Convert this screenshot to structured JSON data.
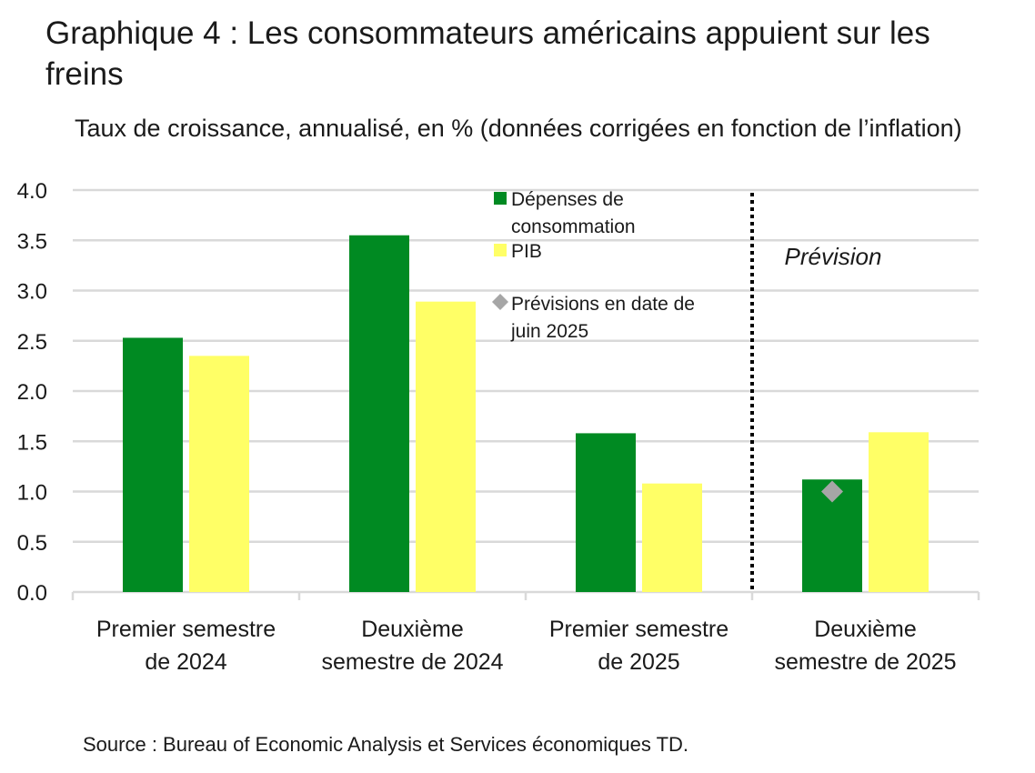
{
  "chart_data": {
    "type": "bar",
    "title": "Graphique 4 : Les consommateurs américains appuient sur les freins",
    "subtitle": "Taux de croissance, annualisé, en % (données corrigées en fonction de l’inflation)",
    "categories": [
      [
        "Premier semestre",
        "de 2024"
      ],
      [
        "Deuxième",
        "semestre de 2024"
      ],
      [
        "Premier semestre",
        "de 2025"
      ],
      [
        "Deuxième",
        "semestre de 2025"
      ]
    ],
    "series": [
      {
        "name": "Dépenses de consommation",
        "legend_lines": [
          "Dépenses de",
          "consommation"
        ],
        "color": "#008a22",
        "values": [
          2.53,
          3.55,
          1.58,
          1.12
        ]
      },
      {
        "name": "PIB",
        "legend_lines": [
          "PIB"
        ],
        "color": "#ffff66",
        "values": [
          2.35,
          2.89,
          1.08,
          1.59
        ]
      }
    ],
    "markers": [
      {
        "name": "Prévisions en date de juin 2025",
        "legend_lines": [
          "Prévisions en date de",
          "juin 2025"
        ],
        "color": "#a6a6a6",
        "category_index": 3,
        "series_index": 0,
        "value": 1.0
      }
    ],
    "yticks": [
      "0.0",
      "0.5",
      "1.0",
      "1.5",
      "2.0",
      "2.5",
      "3.0",
      "3.5",
      "4.0"
    ],
    "ylim": [
      0,
      4
    ],
    "forecast_label": "Prévision",
    "forecast_start_index": 3,
    "grid": true,
    "legend_position": "top-center"
  },
  "source": "Source : Bureau of Economic Analysis et Services économiques TD."
}
